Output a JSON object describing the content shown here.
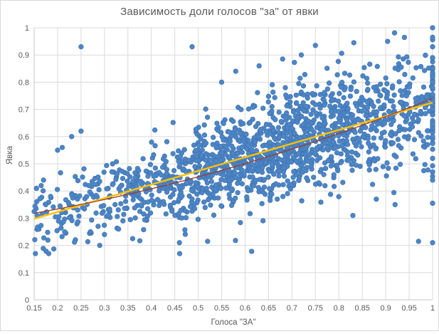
{
  "title": "Зависимость доли голосов \"за\" от явки",
  "colors": {
    "marker": "#4C86C6",
    "marker_edge": "#3E72B0",
    "trend_linear": "#FFC000",
    "trend_poly": "#9C3B26",
    "grid": "#DADADA",
    "axis": "#C6C6C6",
    "text": "#595959",
    "background": "#FFFFFF",
    "frame_border": "#D9D9D9"
  },
  "chart_data": {
    "type": "scatter",
    "title": "Зависимость доли голосов \"за\" от явки",
    "xlabel": "Голоса \"ЗА\"",
    "ylabel": "Явка",
    "xlim": [
      0.15,
      1
    ],
    "ylim": [
      0,
      1
    ],
    "grid": true,
    "legend": "none",
    "x_ticks": [
      0.15,
      0.2,
      0.25,
      0.3,
      0.35,
      0.4,
      0.45,
      0.5,
      0.55,
      0.6,
      0.65,
      0.7,
      0.75,
      0.8,
      0.85,
      0.9,
      0.95,
      1
    ],
    "x_tick_labels": [
      "0.15",
      "0.2",
      "0.25",
      "0.3",
      "0.35",
      "0.4",
      "0.45",
      "0.5",
      "0.55",
      "0.6",
      "0.65",
      "0.7",
      "0.75",
      "0.8",
      "0.85",
      "0.9",
      "0.95",
      "1"
    ],
    "y_ticks": [
      0,
      0.1,
      0.2,
      0.3,
      0.4,
      0.5,
      0.6,
      0.7,
      0.8,
      0.9,
      1
    ],
    "y_tick_labels": [
      "0",
      "0.1",
      "0.2",
      "0.3",
      "0.4",
      "0.5",
      "0.6",
      "0.7",
      "0.8",
      "0.9",
      "1"
    ],
    "series": [
      {
        "marker_color": "#4C86C6",
        "marker_edge": "#3E72B0",
        "marker_radius": 3.3,
        "seed": 42,
        "n_cloud": 1600,
        "x_mix_gauss": 0.78,
        "x_mu": 0.66,
        "x_sd": 0.19,
        "y_base_at_xmin": 0.295,
        "y_slope": 0.5,
        "noise_base": 0.05,
        "noise_x": 0.055,
        "y_floor": 0.17,
        "outlier_p": 0.015,
        "extra_points": [
          [
            0.25,
            0.93
          ],
          [
            0.487,
            0.93
          ],
          [
            0.806,
            0.906
          ],
          [
            0.832,
            0.945
          ],
          [
            0.866,
            0.866
          ],
          [
            0.904,
            0.95
          ],
          [
            0.927,
            0.893
          ],
          [
            0.965,
            0.853
          ],
          [
            0.2,
            0.55
          ],
          [
            0.23,
            0.6
          ],
          [
            0.25,
            0.62
          ],
          [
            0.21,
            0.56
          ],
          [
            0.614,
            0.178
          ],
          [
            0.236,
            0.212
          ],
          [
            0.29,
            0.2
          ],
          [
            0.36,
            0.225
          ],
          [
            0.46,
            0.21
          ],
          [
            0.52,
            0.215
          ],
          [
            0.92,
            0.35
          ],
          [
            0.97,
            0.215
          ],
          [
            0.83,
            0.31
          ],
          [
            0.88,
            0.37
          ],
          [
            0.165,
            0.42
          ],
          [
            0.155,
            0.41
          ],
          [
            0.17,
            0.44
          ],
          [
            0.185,
            0.38
          ],
          [
            0.75,
            0.935
          ],
          [
            0.72,
            0.9
          ],
          [
            0.68,
            0.885
          ],
          [
            0.63,
            0.86
          ],
          [
            0.58,
            0.84
          ],
          [
            0.55,
            0.8
          ],
          [
            0.3,
            0.24
          ],
          [
            0.33,
            0.26
          ],
          [
            0.27,
            0.25
          ]
        ],
        "x1_column": [
          1.0,
          0.965,
          0.93,
          0.89,
          0.82,
          0.78,
          0.755,
          0.735,
          0.72,
          0.7,
          0.68,
          0.645,
          0.615,
          0.6,
          0.575,
          0.52,
          0.47,
          0.44,
          0.355,
          0.21
        ]
      }
    ],
    "trendlines": [
      {
        "label": "linear",
        "color": "#FFC000",
        "width": 2.4,
        "x1": 0.15,
        "y1": 0.298,
        "x2": 1,
        "y2": 0.725
      },
      {
        "label": "quadratic",
        "color": "#9C3B26",
        "width": 1.3,
        "x1": 0.15,
        "y1": 0.318,
        "cx": 0.575,
        "cy": 0.447,
        "x2": 1,
        "y2": 0.74
      }
    ]
  }
}
